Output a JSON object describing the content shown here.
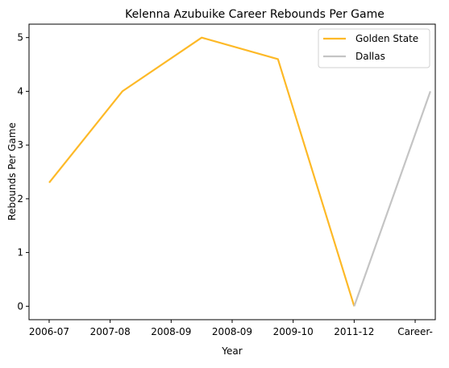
{
  "chart_data": {
    "type": "line",
    "title": "Kelenna Azubuike Career Rebounds Per Game",
    "xlabel": "Year",
    "ylabel": "Rebounds Per Game",
    "categories": [
      "2006-07",
      "2007-08",
      "2008-09",
      "2008-09",
      "2009-10",
      "2011-12",
      "Career-"
    ],
    "ylim": [
      -0.25,
      5.25
    ],
    "yticks": [
      0,
      1,
      2,
      3,
      4,
      5
    ],
    "grid": false,
    "legend_position": "top-right",
    "series": [
      {
        "name": "Golden State",
        "color": "#FDB927",
        "points": [
          {
            "x": 0,
            "y": 2.3
          },
          {
            "x": 1.2,
            "y": 4.0
          },
          {
            "x": 2.5,
            "y": 5.0
          },
          {
            "x": 3.75,
            "y": 4.6
          },
          {
            "x": 5.0,
            "y": 0.0
          }
        ]
      },
      {
        "name": "Dallas",
        "color": "#C4C4C4",
        "points": [
          {
            "x": 5.0,
            "y": 0.0
          },
          {
            "x": 6.25,
            "y": 4.0
          }
        ]
      }
    ]
  }
}
